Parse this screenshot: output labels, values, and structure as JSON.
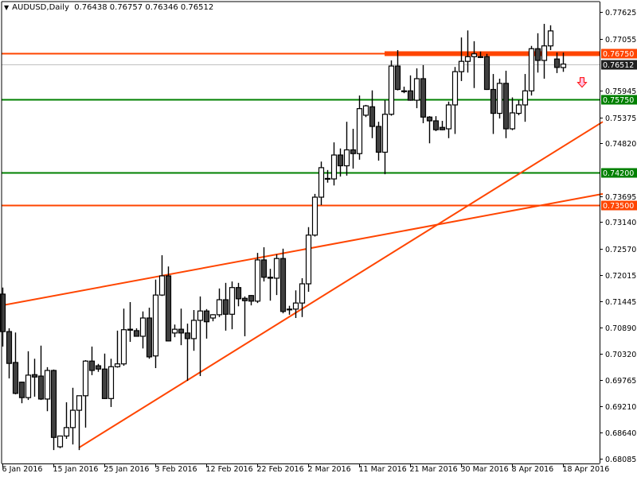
{
  "header": {
    "menu_icon": "triangle-down-icon",
    "symbol": "AUDUSD,Daily",
    "open": "0.76438",
    "high": "0.76757",
    "low": "0.76346",
    "close": "0.76512"
  },
  "colors": {
    "background": "#ffffff",
    "bull_fill": "#ffffff",
    "bear_fill": "#404040",
    "candle_outline": "#000000",
    "resistance": "#ff4500",
    "support": "#008000",
    "bid_line": "#c0c0c0",
    "bid_label": "#202020"
  },
  "chart_data": {
    "type": "candlestick",
    "title": "AUDUSD,Daily",
    "ylim": [
      0.68085,
      0.77625
    ],
    "y_ticks": [
      "0.77625",
      "0.77055",
      "0.76750",
      "0.76512",
      "0.75945",
      "0.75750",
      "0.75375",
      "0.74820",
      "0.74200",
      "0.73695",
      "0.73500",
      "0.73140",
      "0.72570",
      "0.72015",
      "0.71445",
      "0.70890",
      "0.70320",
      "0.69765",
      "0.69210",
      "0.68640",
      "0.68085"
    ],
    "y_tick_values": [
      0.77625,
      0.77055,
      0.75945,
      0.75375,
      0.7482,
      0.73695,
      0.7314,
      0.7257,
      0.72015,
      0.71445,
      0.7089,
      0.7032,
      0.69765,
      0.6921,
      0.6864,
      0.68085
    ],
    "x_ticks": [
      {
        "bar": 0,
        "label": "6 Jan 2016"
      },
      {
        "bar": 8,
        "label": "15 Jan 2016"
      },
      {
        "bar": 16,
        "label": "25 Jan 2016"
      },
      {
        "bar": 24,
        "label": "3 Feb 2016"
      },
      {
        "bar": 32,
        "label": "12 Feb 2016"
      },
      {
        "bar": 40,
        "label": "22 Feb 2016"
      },
      {
        "bar": 48,
        "label": "2 Mar 2016"
      },
      {
        "bar": 56,
        "label": "11 Mar 2016"
      },
      {
        "bar": 64,
        "label": "21 Mar 2016"
      },
      {
        "bar": 72,
        "label": "30 Mar 2016"
      },
      {
        "bar": 80,
        "label": "8 Apr 2016"
      },
      {
        "bar": 88,
        "label": "18 Apr 2016"
      }
    ],
    "ohlc": [
      [
        0.716,
        0.7174,
        0.7048,
        0.708
      ],
      [
        0.708,
        0.7087,
        0.698,
        0.7012
      ],
      [
        0.7014,
        0.7078,
        0.6946,
        0.6948
      ],
      [
        0.6972,
        0.6973,
        0.6927,
        0.6939
      ],
      [
        0.6939,
        0.7038,
        0.6934,
        0.6987
      ],
      [
        0.6988,
        0.7022,
        0.6941,
        0.6983
      ],
      [
        0.6985,
        0.705,
        0.6934,
        0.6936
      ],
      [
        0.6936,
        0.7004,
        0.691,
        0.6997
      ],
      [
        0.6997,
        0.6999,
        0.6827,
        0.6854
      ],
      [
        0.6834,
        0.6857,
        0.6831,
        0.6857
      ],
      [
        0.6857,
        0.6929,
        0.6851,
        0.6875
      ],
      [
        0.6875,
        0.696,
        0.6839,
        0.6912
      ],
      [
        0.6912,
        0.6943,
        0.6827,
        0.6943
      ],
      [
        0.6943,
        0.7019,
        0.6875,
        0.7017
      ],
      [
        0.7017,
        0.7048,
        0.6987,
        0.6997
      ],
      [
        0.7007,
        0.7011,
        0.6994,
        0.7
      ],
      [
        0.7,
        0.7033,
        0.6936,
        0.6937
      ],
      [
        0.6937,
        0.7022,
        0.6919,
        0.7005
      ],
      [
        0.7005,
        0.7082,
        0.7003,
        0.7011
      ],
      [
        0.7011,
        0.7129,
        0.7007,
        0.7084
      ],
      [
        0.7083,
        0.7143,
        0.7058,
        0.7085
      ],
      [
        0.7082,
        0.7087,
        0.707,
        0.707
      ],
      [
        0.707,
        0.7123,
        0.7044,
        0.7109
      ],
      [
        0.7109,
        0.7131,
        0.7022,
        0.7026
      ],
      [
        0.7028,
        0.7191,
        0.7002,
        0.7158
      ],
      [
        0.7158,
        0.7243,
        0.7156,
        0.7199
      ],
      [
        0.7199,
        0.7219,
        0.7059,
        0.706
      ],
      [
        0.7077,
        0.7095,
        0.7068,
        0.7085
      ],
      [
        0.7085,
        0.7129,
        0.7051,
        0.7077
      ],
      [
        0.7077,
        0.7097,
        0.6975,
        0.7065
      ],
      [
        0.7065,
        0.7126,
        0.7039,
        0.7104
      ],
      [
        0.7104,
        0.7155,
        0.6985,
        0.7124
      ],
      [
        0.7124,
        0.7128,
        0.7065,
        0.7101
      ],
      [
        0.7109,
        0.7117,
        0.7102,
        0.7116
      ],
      [
        0.7116,
        0.7172,
        0.7111,
        0.7148
      ],
      [
        0.7148,
        0.7184,
        0.7082,
        0.7117
      ],
      [
        0.7117,
        0.7187,
        0.7085,
        0.7174
      ],
      [
        0.7174,
        0.7184,
        0.7134,
        0.715
      ],
      [
        0.7151,
        0.7155,
        0.707,
        0.7146
      ],
      [
        0.7157,
        0.7158,
        0.7136,
        0.7145
      ],
      [
        0.7145,
        0.7248,
        0.7141,
        0.7233
      ],
      [
        0.7233,
        0.726,
        0.7187,
        0.7196
      ],
      [
        0.7196,
        0.7214,
        0.7146,
        0.7194
      ],
      [
        0.7194,
        0.7245,
        0.7158,
        0.7236
      ],
      [
        0.7236,
        0.7257,
        0.7119,
        0.7123
      ],
      [
        0.7128,
        0.7135,
        0.7116,
        0.7127
      ],
      [
        0.7128,
        0.7168,
        0.7109,
        0.7141
      ],
      [
        0.7141,
        0.7194,
        0.7111,
        0.7182
      ],
      [
        0.7182,
        0.7303,
        0.7165,
        0.7286
      ],
      [
        0.7286,
        0.7374,
        0.7283,
        0.7367
      ],
      [
        0.7367,
        0.7443,
        0.735,
        0.743
      ],
      [
        0.7406,
        0.7425,
        0.7398,
        0.7407
      ],
      [
        0.7406,
        0.7484,
        0.7392,
        0.7457
      ],
      [
        0.7457,
        0.7471,
        0.7411,
        0.7434
      ],
      [
        0.7434,
        0.7528,
        0.7413,
        0.7468
      ],
      [
        0.7468,
        0.7513,
        0.7428,
        0.746
      ],
      [
        0.746,
        0.7584,
        0.7447,
        0.7556
      ],
      [
        0.7542,
        0.7564,
        0.7538,
        0.7562
      ],
      [
        0.756,
        0.7595,
        0.7493,
        0.7518
      ],
      [
        0.7518,
        0.7528,
        0.7445,
        0.7463
      ],
      [
        0.7463,
        0.7574,
        0.7416,
        0.7544
      ],
      [
        0.7544,
        0.7659,
        0.7541,
        0.7647
      ],
      [
        0.7647,
        0.7681,
        0.7595,
        0.7597
      ],
      [
        0.7594,
        0.7603,
        0.7589,
        0.7593
      ],
      [
        0.7594,
        0.7627,
        0.7573,
        0.7574
      ],
      [
        0.7574,
        0.7642,
        0.7557,
        0.762
      ],
      [
        0.762,
        0.7649,
        0.7525,
        0.7538
      ],
      [
        0.7538,
        0.754,
        0.7482,
        0.753
      ],
      [
        0.753,
        0.754,
        0.7508,
        0.7511
      ],
      [
        0.7516,
        0.753,
        0.751,
        0.7511
      ],
      [
        0.7513,
        0.7571,
        0.7493,
        0.7564
      ],
      [
        0.7564,
        0.7645,
        0.7502,
        0.7635
      ],
      [
        0.7635,
        0.7708,
        0.7615,
        0.7657
      ],
      [
        0.7657,
        0.7723,
        0.7633,
        0.7667
      ],
      [
        0.7667,
        0.77,
        0.76,
        0.7673
      ],
      [
        0.7667,
        0.7678,
        0.7664,
        0.7666
      ],
      [
        0.7667,
        0.7673,
        0.7596,
        0.7597
      ],
      [
        0.7597,
        0.763,
        0.7502,
        0.7546
      ],
      [
        0.7546,
        0.762,
        0.7535,
        0.761
      ],
      [
        0.761,
        0.7637,
        0.7493,
        0.7513
      ],
      [
        0.7513,
        0.758,
        0.751,
        0.7547
      ],
      [
        0.7546,
        0.7574,
        0.7542,
        0.7564
      ],
      [
        0.7564,
        0.763,
        0.7528,
        0.7594
      ],
      [
        0.7594,
        0.769,
        0.7584,
        0.7684
      ],
      [
        0.7684,
        0.7717,
        0.7633,
        0.7659
      ],
      [
        0.7659,
        0.7737,
        0.762,
        0.769
      ],
      [
        0.769,
        0.7734,
        0.7681,
        0.7722
      ],
      [
        0.7662,
        0.7676,
        0.7632,
        0.7644
      ],
      [
        0.76438,
        0.76757,
        0.76346,
        0.76512
      ]
    ],
    "levels": [
      {
        "price": 0.7675,
        "label": "0.76750",
        "role": "resistance",
        "heavy_from_bar": 60
      },
      {
        "price": 0.7575,
        "label": "0.75750",
        "role": "support"
      },
      {
        "price": 0.742,
        "label": "0.74200",
        "role": "support"
      },
      {
        "price": 0.735,
        "label": "0.73500",
        "role": "resistance"
      }
    ],
    "bid": {
      "price": 0.76512,
      "label": "0.76512"
    },
    "trendlines": [
      {
        "from": {
          "bar": -0.4,
          "price": 0.7135
        },
        "to": {
          "bar": 94.25,
          "price": 0.7374
        }
      },
      {
        "from": {
          "bar": 12,
          "price": 0.6832
        },
        "to": {
          "bar": 94.25,
          "price": 0.7528
        }
      }
    ],
    "signal": {
      "type": "sell-arrow",
      "bar": 91,
      "price": 0.7612,
      "icon": "arrow-down-icon"
    }
  }
}
